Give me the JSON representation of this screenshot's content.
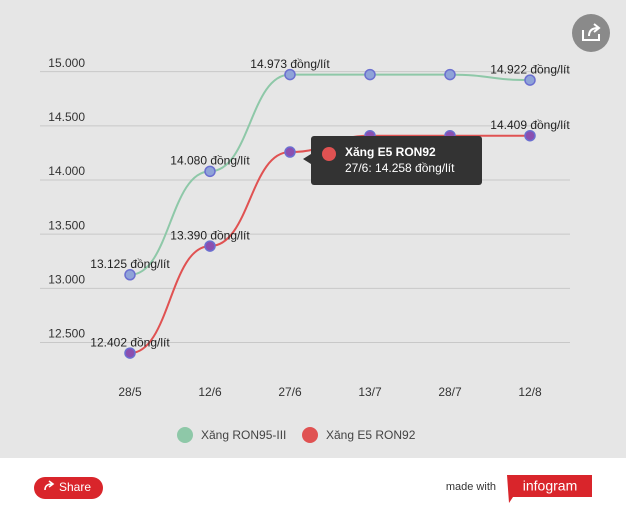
{
  "chart_data": {
    "type": "line",
    "categories": [
      "28/5",
      "12/6",
      "27/6",
      "13/7",
      "28/7",
      "12/8"
    ],
    "series": [
      {
        "name": "Xăng RON95-III",
        "color": "#8ec8a8",
        "point_color": "#8fa3d8",
        "point_stroke": "#6b6fd0",
        "values": [
          13125,
          14080,
          14973,
          14973,
          14973,
          14922
        ],
        "value_labels": [
          "13.125 đồng/lít",
          "14.080 đồng/lít",
          "14.973 đồng/lít",
          null,
          null,
          "14.922 đồng/lít"
        ]
      },
      {
        "name": "Xăng E5 RON92",
        "color": "#e05252",
        "point_color": "#8a4fb0",
        "point_stroke": "#6b6fd0",
        "values": [
          12402,
          13390,
          14258,
          14409,
          14409,
          14409
        ],
        "value_labels": [
          "12.402 đồng/lít",
          "13.390 đồng/lít",
          null,
          null,
          null,
          "14.409 đồng/lít"
        ]
      }
    ],
    "ylim": [
      12200,
      15200
    ],
    "yticks": [
      {
        "value": 12500,
        "label": "12.500"
      },
      {
        "value": 13000,
        "label": "13.000"
      },
      {
        "value": 13500,
        "label": "13.500"
      },
      {
        "value": 14000,
        "label": "14.000"
      },
      {
        "value": 14500,
        "label": "14.500"
      },
      {
        "value": 15000,
        "label": "15.000"
      }
    ],
    "grid": true,
    "legend": "bottom",
    "tooltip": {
      "title": "Xăng E5 RON92",
      "text": "27/6: 14.258 đồng/lít"
    }
  },
  "footer": {
    "share": "Share",
    "made_with": "made with",
    "brand": "infogram"
  }
}
